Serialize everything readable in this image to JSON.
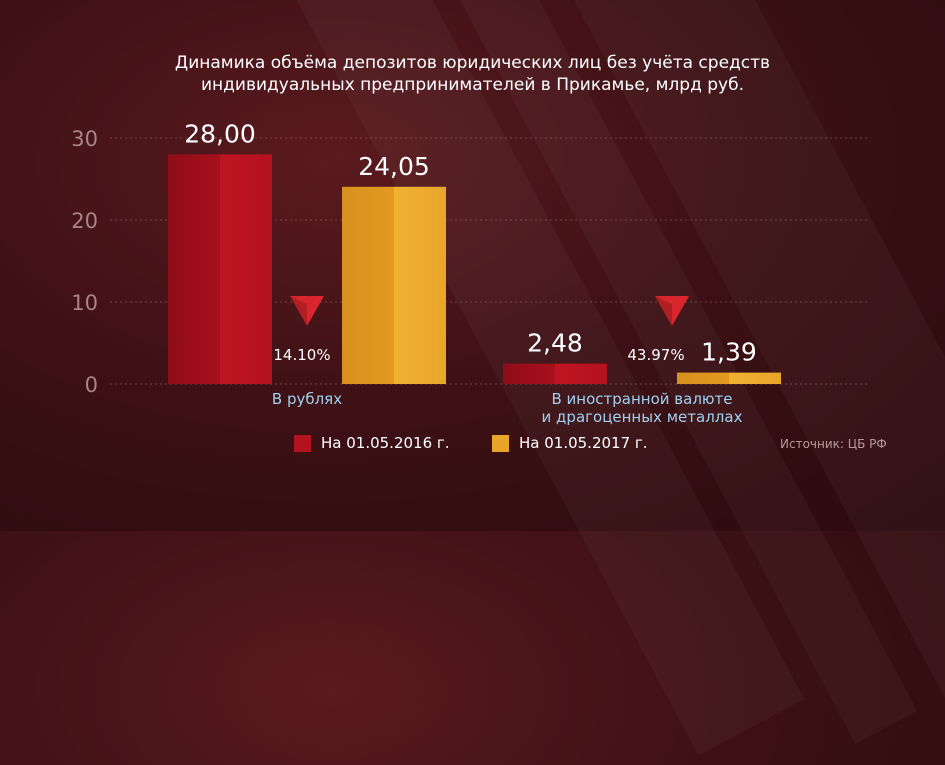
{
  "colors": {
    "series1": "#b3121f",
    "series2": "#e8a52a",
    "axis_text": "#a88485",
    "category_text": "#9fd0f0",
    "indicator": "#d8262c"
  },
  "chart_data": {
    "type": "bar",
    "title_line1": "Динамика объёма депозитов юридических лиц без учёта средств",
    "title_line2": "индивидуальных предпринимателей в Прикамье, млрд руб.",
    "categories": [
      {
        "line1": "В рублях",
        "line2": ""
      },
      {
        "line1": "В иностранной валюте",
        "line2": "и драгоценных металлах"
      }
    ],
    "series": [
      {
        "name": "На 01.05.2016 г.",
        "values": [
          28.0,
          2.48
        ],
        "labels": [
          "28,00",
          "2,48"
        ]
      },
      {
        "name": "На 01.05.2017 г.",
        "values": [
          24.05,
          1.39
        ],
        "labels": [
          "24,05",
          "1,39"
        ]
      }
    ],
    "changes": [
      "14.10%",
      "43.97%"
    ],
    "change_icon": "down-triangle-icon",
    "ylim": [
      0,
      30
    ],
    "yticks": [
      0,
      10,
      20,
      30
    ],
    "grid": true,
    "legend_position": "bottom-center",
    "source": "Источник: ЦБ РФ"
  }
}
